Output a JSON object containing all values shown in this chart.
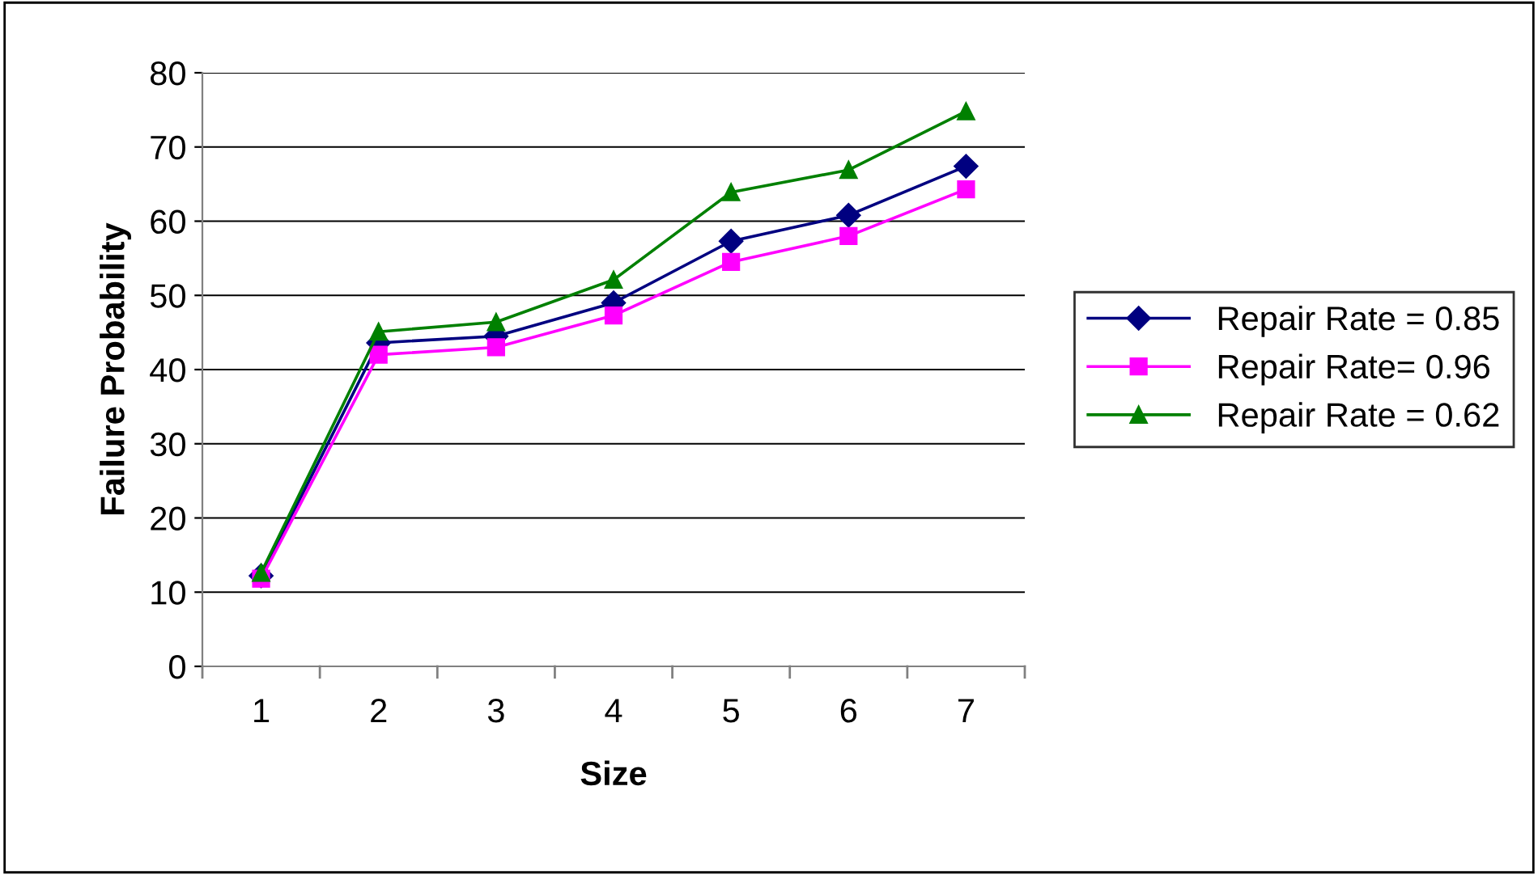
{
  "chart_data": {
    "type": "line",
    "xlabel": "Size",
    "ylabel": "Failure Probability",
    "categories": [
      "1",
      "2",
      "3",
      "4",
      "5",
      "6",
      "7"
    ],
    "series": [
      {
        "name": "Repair Rate = 0.85",
        "color": "#000080",
        "marker": "diamond",
        "values": [
          12.2,
          43.6,
          44.5,
          49,
          57.3,
          60.8,
          67.4
        ]
      },
      {
        "name": "Repair Rate= 0.96",
        "color": "#ff00ff",
        "marker": "square",
        "values": [
          11.8,
          42,
          43,
          47.3,
          54.5,
          58,
          64.3
        ]
      },
      {
        "name": "Repair Rate = 0.62",
        "color": "#008000",
        "marker": "triangle",
        "values": [
          12.6,
          45.1,
          46.4,
          52.1,
          63.9,
          66.9,
          74.8
        ]
      }
    ],
    "ylim": [
      0,
      80
    ],
    "yticks": [
      0,
      10,
      20,
      30,
      40,
      50,
      60,
      70,
      80
    ],
    "grid": "y",
    "legend": "right"
  }
}
